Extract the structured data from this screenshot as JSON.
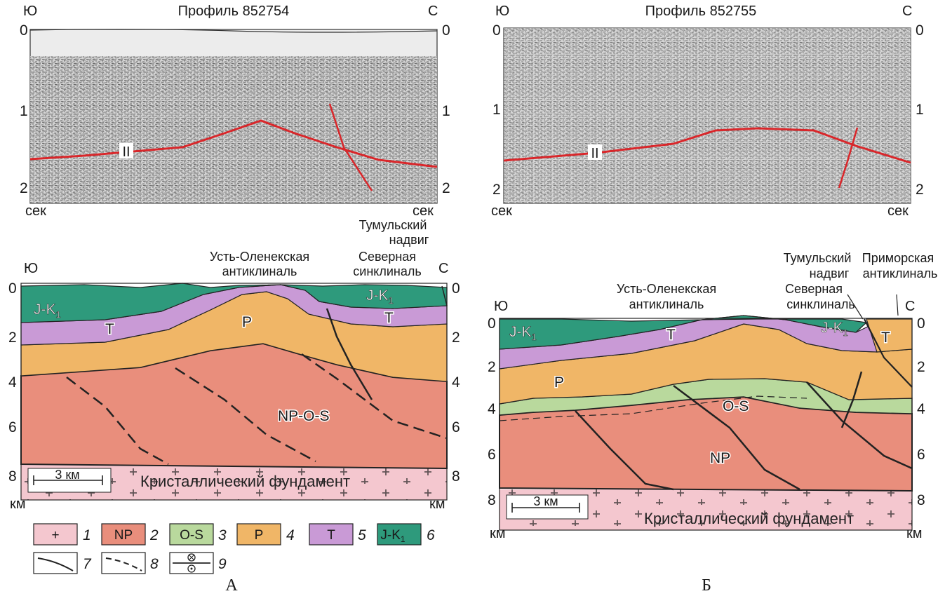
{
  "colors": {
    "foundation": "#f4c7cf",
    "np": "#e98e7c",
    "os": "#b9d99d",
    "p": "#f0b667",
    "t": "#c99ad6",
    "jk": "#2e9a7c",
    "horizon": "#d9262a"
  },
  "left": {
    "seismic": {
      "title": "Профиль 852754",
      "dir_left": "Ю",
      "dir_right": "С",
      "ticks": [
        "0",
        "1",
        "2"
      ],
      "unit": "сек",
      "horizon_label": "II"
    },
    "section": {
      "dir_left": "Ю",
      "dir_right": "С",
      "ticks": [
        "0",
        "2",
        "4",
        "6",
        "8"
      ],
      "unit": "км",
      "scale": "3 км",
      "foundation": "Кристаллический фундамент",
      "units": {
        "jk_a": "J-K",
        "jk_b": "J-K",
        "jk_sub": "1",
        "t_a": "T",
        "t_b": "T",
        "p": "P",
        "npos": "NP-O-S"
      },
      "names": {
        "ust_line1": "Усть-Оленекская",
        "ust_line2": "антиклиналь",
        "sev_line1": "Северная",
        "sev_line2": "синклиналь",
        "tum_line1": "Тумульский",
        "tum_line2": "надвиг"
      }
    },
    "panel_label": "А"
  },
  "right": {
    "seismic": {
      "title": "Профиль 852755",
      "dir_left": "Ю",
      "dir_right": "С",
      "ticks": [
        "0",
        "1",
        "2"
      ],
      "unit": "сек",
      "horizon_label": "II"
    },
    "section": {
      "dir_left": "Ю",
      "dir_right": "С",
      "ticks": [
        "0",
        "2",
        "4",
        "6",
        "8"
      ],
      "unit": "км",
      "scale": "3 км",
      "foundation": "Кристаллический фундамент",
      "units": {
        "jk_a": "J-K",
        "jk_b": "J-K",
        "jk_sub": "1",
        "t_a": "T",
        "t_b": "T",
        "p": "P",
        "os": "O-S",
        "np": "NP"
      },
      "names": {
        "ust_line1": "Усть-Оленекская",
        "ust_line2": "антиклиналь",
        "sev_line1": "Северная",
        "sev_line2": "синклиналь",
        "tum_line1": "Тумульский",
        "tum_line2": "надвиг",
        "prim_line1": "Приморская",
        "prim_line2": "антиклиналь"
      }
    },
    "panel_label": "Б"
  },
  "legend": {
    "items": [
      {
        "num": "1",
        "box": "+"
      },
      {
        "num": "2",
        "box": "NP"
      },
      {
        "num": "3",
        "box": "O-S"
      },
      {
        "num": "4",
        "box": "P"
      },
      {
        "num": "5",
        "box": "T"
      },
      {
        "num": "6",
        "box": "J-K",
        "sub": "1"
      },
      {
        "num": "7"
      },
      {
        "num": "8"
      },
      {
        "num": "9"
      }
    ]
  }
}
